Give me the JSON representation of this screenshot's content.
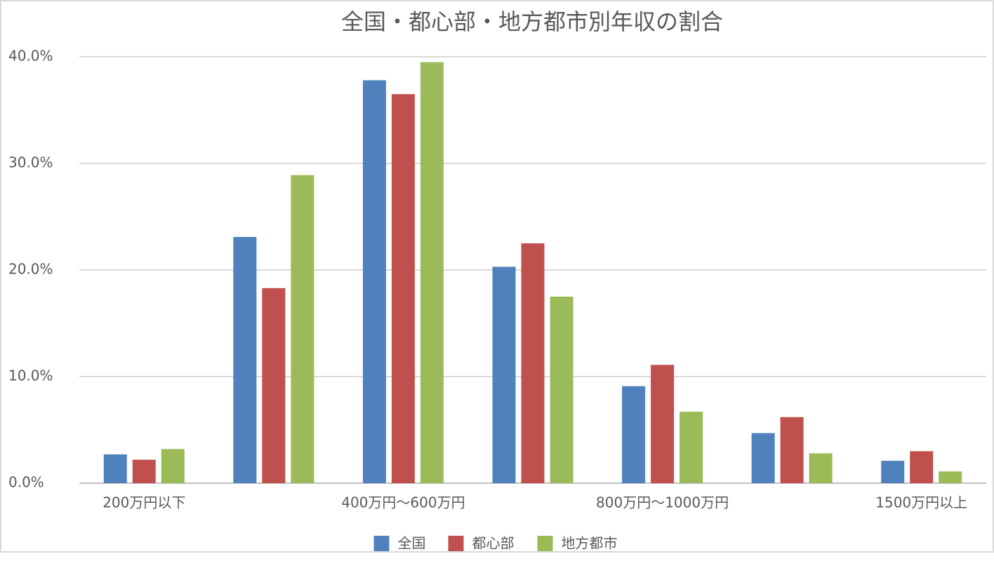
{
  "chart_data": {
    "type": "bar",
    "title": "全国・都心部・地方都市別年収の割合",
    "categories": [
      "200万円以下",
      null,
      "400万円〜600万円",
      null,
      "800万円〜1000万円",
      null,
      "1500万円以上"
    ],
    "series": [
      {
        "name": "全国",
        "color": "#4f81bd",
        "values": [
          2.7,
          23.1,
          37.8,
          20.3,
          9.1,
          4.7,
          2.1
        ]
      },
      {
        "name": "都心部",
        "color": "#c0504d",
        "values": [
          2.2,
          18.3,
          36.5,
          22.5,
          11.1,
          6.2,
          3.0
        ]
      },
      {
        "name": "地方都市",
        "color": "#9bbb59",
        "values": [
          3.2,
          28.9,
          39.5,
          17.5,
          6.7,
          2.8,
          1.1
        ]
      }
    ],
    "ylim": [
      0,
      40
    ],
    "yticks": [
      {
        "value": 0,
        "label": "0.0%"
      },
      {
        "value": 10,
        "label": "10.0%"
      },
      {
        "value": 20,
        "label": "20.0%"
      },
      {
        "value": 30,
        "label": "30.0%"
      },
      {
        "value": 40,
        "label": "40.0%"
      }
    ],
    "grid": true,
    "legend": "bottom"
  }
}
